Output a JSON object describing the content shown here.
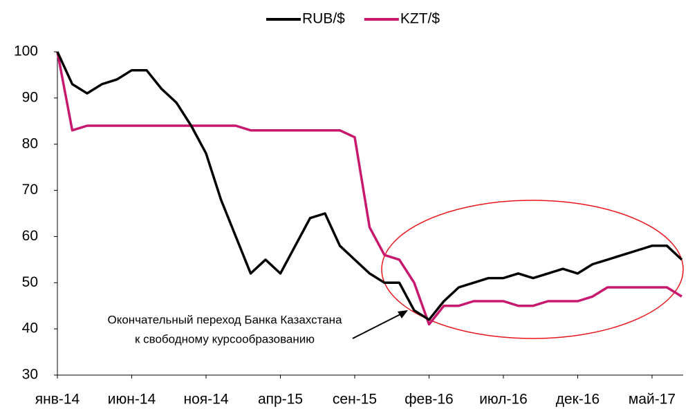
{
  "chart_data": {
    "type": "line",
    "categories": [
      "янв-14",
      null,
      null,
      null,
      null,
      "июн-14",
      null,
      null,
      null,
      null,
      "ноя-14",
      null,
      null,
      null,
      null,
      "апр-15",
      null,
      null,
      null,
      null,
      "сен-15",
      null,
      null,
      null,
      null,
      "фев-16",
      null,
      null,
      null,
      null,
      "июл-16",
      null,
      null,
      null,
      null,
      "дек-16",
      null,
      null,
      null,
      null,
      "май-17",
      null,
      null
    ],
    "series": [
      {
        "name": "RUB/$",
        "color": "#000000",
        "values": [
          100,
          93,
          91,
          93,
          94,
          96,
          96,
          92,
          89,
          84,
          78,
          68,
          60,
          52,
          55,
          52,
          58,
          64,
          65,
          58,
          55,
          52,
          50,
          50,
          44,
          42,
          46,
          49,
          50,
          51,
          51,
          52,
          51,
          52,
          53,
          52,
          54,
          55,
          56,
          57,
          58,
          58,
          55
        ]
      },
      {
        "name": "KZT/$",
        "color": "#c8186e",
        "values": [
          100,
          83,
          84,
          84,
          84,
          84,
          84,
          84,
          84,
          84,
          84,
          84,
          84,
          83,
          83,
          83,
          83,
          83,
          83,
          83,
          81.5,
          62,
          56,
          55,
          50,
          41,
          45,
          45,
          46,
          46,
          46,
          45,
          45,
          46,
          46,
          46,
          47,
          49,
          49,
          49,
          49,
          49,
          47
        ]
      }
    ],
    "ylim": [
      30,
      100
    ],
    "yticks": [
      30,
      40,
      50,
      60,
      70,
      80,
      90,
      100
    ],
    "grid": false,
    "legend": "top",
    "annotation": [
      "Окончательный переход Банка Казахстана",
      "к свободному курсообразованию"
    ]
  }
}
